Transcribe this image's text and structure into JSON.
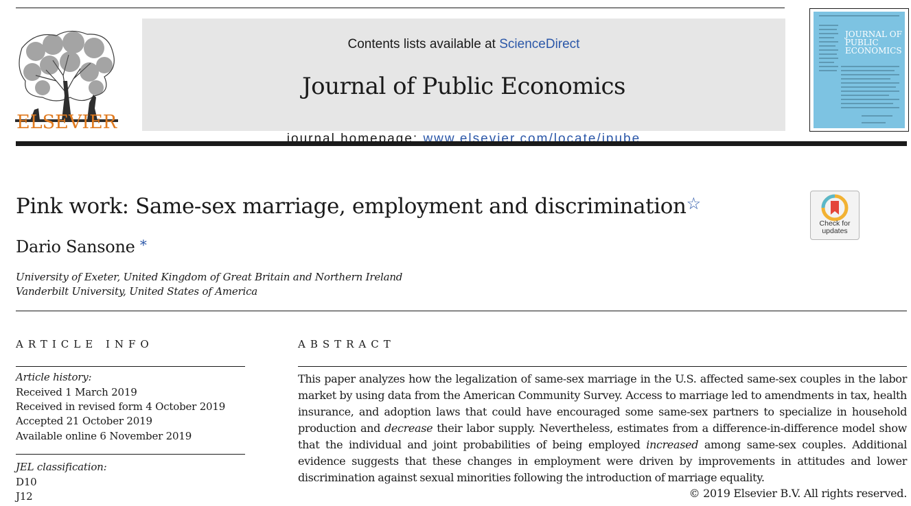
{
  "header": {
    "contents_prefix": "Contents lists available at ",
    "contents_link": "ScienceDirect",
    "journal_name": "Journal of Public Economics",
    "homepage_prefix": "journal homepage: ",
    "homepage_link": "www.elsevier.com/locate/jpube",
    "publisher_wordmark": "ELSEVIER",
    "cover_title": "JOURNAL OF PUBLIC ECONOMICS"
  },
  "article": {
    "title": "Pink work: Same-sex marriage, employment and discrimination",
    "title_star": "☆",
    "author": "Dario Sansone",
    "author_star": "*",
    "affiliations": [
      "University of Exeter, United Kingdom of Great Britain and Northern Ireland",
      "Vanderbilt University, United States of America"
    ],
    "check_updates": "Check for updates"
  },
  "article_info": {
    "heading": "ARTICLE INFO",
    "history_label": "Article history:",
    "history": [
      "Received 1 March 2019",
      "Received in revised form 4 October 2019",
      "Accepted 21 October 2019",
      "Available online 6 November 2019"
    ],
    "jel_label": "JEL classification:",
    "jel": [
      "D10",
      "J12"
    ]
  },
  "abstract": {
    "heading": "ABSTRACT",
    "part1": "This paper analyzes how the legalization of same-sex marriage in the U.S. affected same-sex couples in the labor market by using data from the American Community Survey. Access to marriage led to amendments in tax, health insurance, and adoption laws that could have encouraged some same-sex partners to specialize in household production and ",
    "em1": "decrease",
    "part2": " their labor supply. Nevertheless, estimates from a difference-in-difference model show that the individual and joint probabilities of being employed ",
    "em2": "increased",
    "part3": " among same-sex couples. Additional evidence suggests that these changes in employment were driven by improvements in attitudes and lower discrimination against sexual minorities following the introduction of marriage equality.",
    "copyright": "© 2019 Elsevier B.V. All rights reserved."
  },
  "colors": {
    "link_blue": "#2b57a8",
    "elsevier_orange": "#e07a1f",
    "banner_gray": "#e6e6e6",
    "cover_blue": "#7dc3e2"
  },
  "icons": {
    "publisher_logo": "elsevier-tree-logo",
    "badge": "check-for-updates-icon"
  }
}
